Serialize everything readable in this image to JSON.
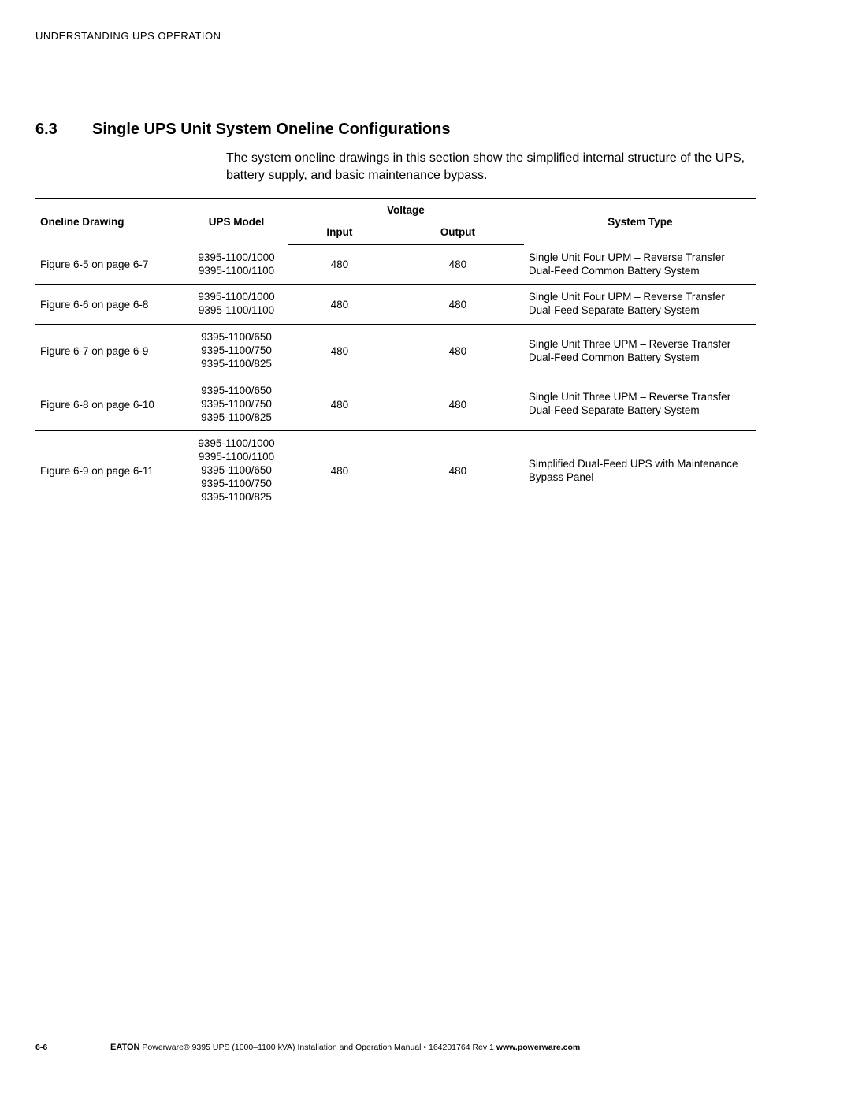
{
  "runningHeader": "UNDERSTANDING UPS OPERATION",
  "section": {
    "num": "6.3",
    "title": "Single UPS Unit System Oneline Configurations"
  },
  "intro": "The system oneline drawings in this section show the simplified internal structure of the UPS, battery supply, and basic maintenance bypass.",
  "table": {
    "headers": {
      "oneline": "Oneline Drawing",
      "model": "UPS Model",
      "voltage": "Voltage",
      "input": "Input",
      "output": "Output",
      "systemType": "System Type"
    },
    "rows": [
      {
        "drawing": "Figure 6-5 on page 6-7",
        "models": [
          "9395-1100/1000",
          "9395-1100/1100"
        ],
        "input": "480",
        "output": "480",
        "system": [
          "Single Unit Four UPM – Reverse Transfer",
          "Dual-Feed Common Battery System"
        ]
      },
      {
        "drawing": "Figure 6-6 on page 6-8",
        "models": [
          "9395-1100/1000",
          "9395-1100/1100"
        ],
        "input": "480",
        "output": "480",
        "system": [
          "Single Unit Four UPM – Reverse Transfer",
          "Dual-Feed Separate Battery System"
        ]
      },
      {
        "drawing": "Figure 6-7 on page 6-9",
        "models": [
          "9395-1100/650",
          "9395-1100/750",
          "9395-1100/825"
        ],
        "input": "480",
        "output": "480",
        "system": [
          "Single Unit Three UPM – Reverse Transfer",
          "Dual-Feed Common Battery System"
        ]
      },
      {
        "drawing": "Figure 6-8 on page 6-10",
        "models": [
          "9395-1100/650",
          "9395-1100/750",
          "9395-1100/825"
        ],
        "input": "480",
        "output": "480",
        "system": [
          "Single Unit Three UPM – Reverse Transfer",
          "Dual-Feed Separate Battery System"
        ]
      },
      {
        "drawing": "Figure 6-9 on page 6-11",
        "models": [
          "9395-1100/1000",
          "9395-1100/1100",
          "9395-1100/650",
          "9395-1100/750",
          "9395-1100/825"
        ],
        "input": "480",
        "output": "480",
        "system": [
          "Simplified Dual-Feed UPS with Maintenance",
          "Bypass Panel"
        ]
      }
    ]
  },
  "footer": {
    "pageNum": "6-6",
    "brand": "EATON",
    "text": " Powerware® 9395 UPS (1000–1100 kVA) Installation and Operation Manual  •  164201764 Rev 1  ",
    "url": "www.powerware.com"
  }
}
